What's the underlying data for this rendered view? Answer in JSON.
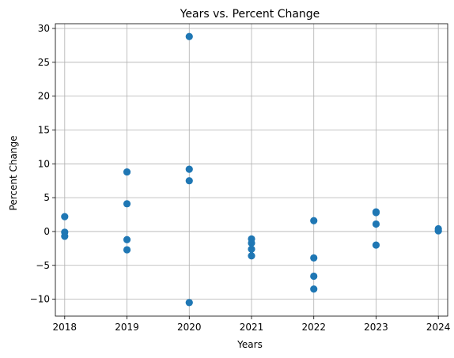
{
  "chart_data": {
    "type": "scatter",
    "title": "Years vs. Percent Change",
    "xlabel": "Years",
    "ylabel": "Percent Change",
    "xlim": [
      2017.85,
      2024.15
    ],
    "ylim": [
      -12.5,
      30.7
    ],
    "xticks": [
      2018,
      2019,
      2020,
      2021,
      2022,
      2023,
      2024
    ],
    "yticks": [
      -10,
      -5,
      0,
      5,
      10,
      15,
      20,
      25,
      30
    ],
    "grid": true,
    "marker_color": "#1f77b4",
    "points": [
      {
        "x": 2018,
        "y": 2.2
      },
      {
        "x": 2018,
        "y": -0.1
      },
      {
        "x": 2018,
        "y": -0.7
      },
      {
        "x": 2019,
        "y": 8.8
      },
      {
        "x": 2019,
        "y": 4.1
      },
      {
        "x": 2019,
        "y": -1.2
      },
      {
        "x": 2019,
        "y": -2.7
      },
      {
        "x": 2020,
        "y": 28.8
      },
      {
        "x": 2020,
        "y": 9.2
      },
      {
        "x": 2020,
        "y": 7.5
      },
      {
        "x": 2020,
        "y": -10.5
      },
      {
        "x": 2021,
        "y": -1.1
      },
      {
        "x": 2021,
        "y": -1.7
      },
      {
        "x": 2021,
        "y": -2.6
      },
      {
        "x": 2021,
        "y": -3.6
      },
      {
        "x": 2022,
        "y": 1.6
      },
      {
        "x": 2022,
        "y": -3.9
      },
      {
        "x": 2022,
        "y": -6.6
      },
      {
        "x": 2022,
        "y": -8.5
      },
      {
        "x": 2023,
        "y": 2.9
      },
      {
        "x": 2023,
        "y": 2.8
      },
      {
        "x": 2023,
        "y": 1.1
      },
      {
        "x": 2023,
        "y": -2.0
      },
      {
        "x": 2024,
        "y": 0.4
      },
      {
        "x": 2024,
        "y": 0.1
      }
    ]
  }
}
